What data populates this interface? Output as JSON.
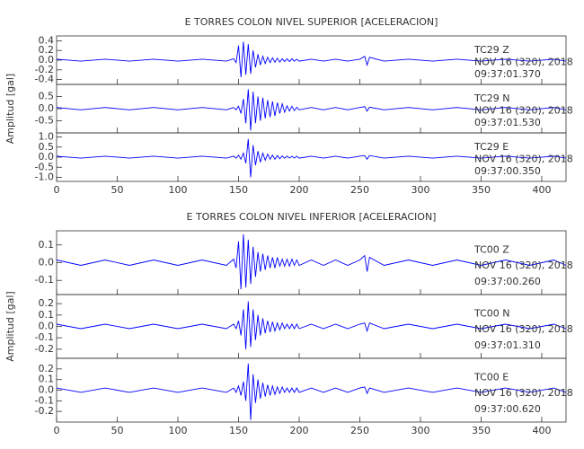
{
  "chart_data": [
    {
      "type": "line",
      "title": "E TORRES COLON NIVEL SUPERIOR [ACELERACION]",
      "ylabel": "Amplitud [gal]",
      "color": "#0000ff",
      "xlim": [
        0,
        420
      ],
      "xticks": [
        0,
        50,
        100,
        150,
        200,
        250,
        300,
        350,
        400
      ],
      "x": [
        0,
        20,
        40,
        60,
        80,
        100,
        120,
        140,
        146,
        148,
        150,
        152,
        154,
        156,
        158,
        160,
        162,
        164,
        166,
        168,
        170,
        172,
        174,
        176,
        178,
        180,
        182,
        184,
        186,
        188,
        190,
        192,
        194,
        196,
        198,
        200,
        210,
        220,
        230,
        240,
        250,
        254,
        256,
        258,
        270,
        290,
        310,
        330,
        350,
        370,
        390,
        410,
        420
      ],
      "panels": [
        {
          "station": "TC29   Z",
          "date": "NOV 16 (320), 2018",
          "time": "09:37:01.370",
          "ylim": [
            -0.5,
            0.5
          ],
          "yticks": [
            0.4,
            0.2,
            {
              "value": 0,
              "label": "0.0"
            },
            -0.2,
            -0.4
          ],
          "values": [
            0.02,
            -0.02,
            0.02,
            -0.02,
            0.02,
            -0.02,
            0.02,
            -0.02,
            0.03,
            -0.05,
            0.3,
            -0.35,
            0.38,
            -0.3,
            0.33,
            -0.28,
            0.2,
            -0.15,
            0.12,
            -0.1,
            0.08,
            -0.07,
            0.06,
            -0.05,
            0.05,
            -0.04,
            0.04,
            -0.04,
            0.03,
            -0.03,
            0.03,
            -0.03,
            0.03,
            -0.02,
            0.02,
            -0.02,
            0.02,
            -0.02,
            0.02,
            -0.02,
            0.02,
            0.08,
            -0.1,
            0.06,
            -0.02,
            0.02,
            -0.02,
            0.02,
            -0.02,
            0.02,
            -0.02,
            0.02,
            -0.02
          ]
        },
        {
          "station": "TC29   N",
          "date": "NOV 16 (320), 2018",
          "time": "09:37:01.530",
          "ylim": [
            -1,
            1
          ],
          "yticks": [
            0.5,
            {
              "value": 0,
              "label": "0.0"
            },
            -0.5
          ],
          "values": [
            0.05,
            -0.05,
            0.05,
            -0.05,
            0.05,
            -0.05,
            0.05,
            -0.05,
            0.05,
            -0.05,
            0.1,
            -0.2,
            0.4,
            -0.6,
            0.8,
            -0.9,
            0.7,
            -0.6,
            0.5,
            -0.5,
            0.45,
            -0.4,
            0.35,
            -0.35,
            0.3,
            -0.3,
            0.25,
            -0.2,
            0.2,
            -0.15,
            0.12,
            -0.1,
            0.1,
            -0.08,
            0.06,
            -0.05,
            0.05,
            -0.05,
            0.05,
            -0.05,
            0.05,
            0.08,
            -0.1,
            0.06,
            -0.05,
            0.05,
            -0.05,
            0.05,
            -0.05,
            0.05,
            -0.05,
            0.05,
            -0.05
          ]
        },
        {
          "station": "TC29   E",
          "date": "NOV 16 (320), 2018",
          "time": "09:37:00.350",
          "ylim": [
            -1.2,
            1.2
          ],
          "yticks": [
            {
              "value": 1,
              "label": "1.0"
            },
            0.5,
            {
              "value": 0,
              "label": "0.0"
            },
            -0.5,
            {
              "value": -1,
              "label": "-1.0"
            }
          ],
          "values": [
            0.05,
            -0.05,
            0.05,
            -0.05,
            0.05,
            -0.05,
            0.05,
            -0.05,
            0.05,
            -0.05,
            0.1,
            -0.1,
            0.2,
            -0.3,
            0.9,
            -1.0,
            0.6,
            -0.4,
            0.3,
            -0.25,
            0.2,
            -0.15,
            0.15,
            -0.1,
            0.1,
            -0.1,
            0.08,
            -0.08,
            0.06,
            -0.06,
            0.05,
            -0.05,
            0.05,
            -0.05,
            0.05,
            -0.05,
            0.05,
            -0.05,
            0.05,
            -0.05,
            0.05,
            0.08,
            -0.1,
            0.08,
            -0.05,
            0.05,
            -0.05,
            0.05,
            -0.05,
            0.05,
            -0.05,
            0.05,
            -0.05
          ]
        }
      ]
    },
    {
      "type": "line",
      "title": "E TORRES COLON NIVEL INFERIOR [ACELERACION]",
      "ylabel": "Amplitud [gal]",
      "color": "#0000ff",
      "xlim": [
        0,
        420
      ],
      "xticks": [
        0,
        50,
        100,
        150,
        200,
        250,
        300,
        350,
        400
      ],
      "x": [
        0,
        20,
        40,
        60,
        80,
        100,
        120,
        140,
        146,
        148,
        150,
        152,
        154,
        156,
        158,
        160,
        162,
        164,
        166,
        168,
        170,
        172,
        174,
        176,
        178,
        180,
        182,
        184,
        186,
        188,
        190,
        192,
        194,
        196,
        198,
        200,
        210,
        220,
        230,
        240,
        250,
        254,
        256,
        258,
        270,
        290,
        310,
        330,
        350,
        370,
        390,
        410,
        420
      ],
      "panels": [
        {
          "station": "TC00   Z",
          "date": "NOV 16 (320), 2018",
          "time": "09:37:00.260",
          "ylim": [
            -0.18,
            0.18
          ],
          "yticks": [
            0.1,
            {
              "value": 0,
              "label": "0.0"
            },
            -0.1
          ],
          "values": [
            0.015,
            -0.015,
            0.015,
            -0.015,
            0.015,
            -0.015,
            0.015,
            -0.015,
            0.02,
            -0.03,
            0.12,
            -0.15,
            0.16,
            -0.14,
            0.13,
            -0.12,
            0.09,
            -0.08,
            0.06,
            -0.05,
            0.05,
            -0.04,
            0.04,
            -0.03,
            0.03,
            -0.03,
            0.03,
            -0.02,
            0.02,
            -0.02,
            0.02,
            -0.02,
            0.02,
            -0.015,
            0.015,
            -0.015,
            0.015,
            -0.015,
            0.015,
            -0.015,
            0.015,
            0.04,
            -0.05,
            0.03,
            -0.015,
            0.015,
            -0.015,
            0.015,
            -0.015,
            0.015,
            -0.015,
            0.015,
            -0.015
          ]
        },
        {
          "station": "TC00   N",
          "date": "NOV 16 (320), 2018",
          "time": "09:37:01.310",
          "ylim": [
            -0.28,
            0.28
          ],
          "yticks": [
            0.2,
            0.1,
            {
              "value": 0,
              "label": "0.0"
            },
            -0.1,
            -0.2
          ],
          "values": [
            0.02,
            -0.02,
            0.02,
            -0.02,
            0.02,
            -0.02,
            0.02,
            -0.02,
            0.02,
            -0.02,
            0.05,
            -0.08,
            0.15,
            -0.2,
            0.22,
            -0.18,
            0.15,
            -0.12,
            0.1,
            -0.08,
            0.07,
            -0.06,
            0.05,
            -0.05,
            0.04,
            -0.04,
            0.03,
            -0.03,
            0.03,
            -0.02,
            0.02,
            -0.02,
            0.02,
            -0.02,
            0.02,
            -0.02,
            0.02,
            -0.02,
            0.02,
            -0.02,
            0.02,
            0.03,
            -0.04,
            0.03,
            -0.02,
            0.02,
            -0.02,
            0.02,
            -0.02,
            0.02,
            -0.02,
            0.02,
            -0.02
          ]
        },
        {
          "station": "TC00   E",
          "date": "NOV 16 (320), 2018",
          "time": "09:37:00.620",
          "ylim": [
            -0.3,
            0.3
          ],
          "yticks": [
            0.2,
            0.1,
            {
              "value": 0,
              "label": "0.0"
            },
            -0.1,
            -0.2
          ],
          "values": [
            0.02,
            -0.02,
            0.02,
            -0.02,
            0.02,
            -0.02,
            0.02,
            -0.02,
            0.02,
            -0.02,
            0.04,
            -0.05,
            0.08,
            -0.1,
            0.25,
            -0.28,
            0.15,
            -0.12,
            0.1,
            -0.08,
            0.07,
            -0.06,
            0.05,
            -0.05,
            0.04,
            -0.04,
            0.03,
            -0.03,
            0.03,
            -0.02,
            0.02,
            -0.02,
            0.02,
            -0.02,
            0.02,
            -0.02,
            0.02,
            -0.02,
            0.02,
            -0.02,
            0.02,
            0.03,
            -0.03,
            0.02,
            -0.02,
            0.02,
            -0.02,
            0.02,
            -0.02,
            0.02,
            -0.02,
            0.02,
            -0.02
          ]
        }
      ]
    }
  ]
}
